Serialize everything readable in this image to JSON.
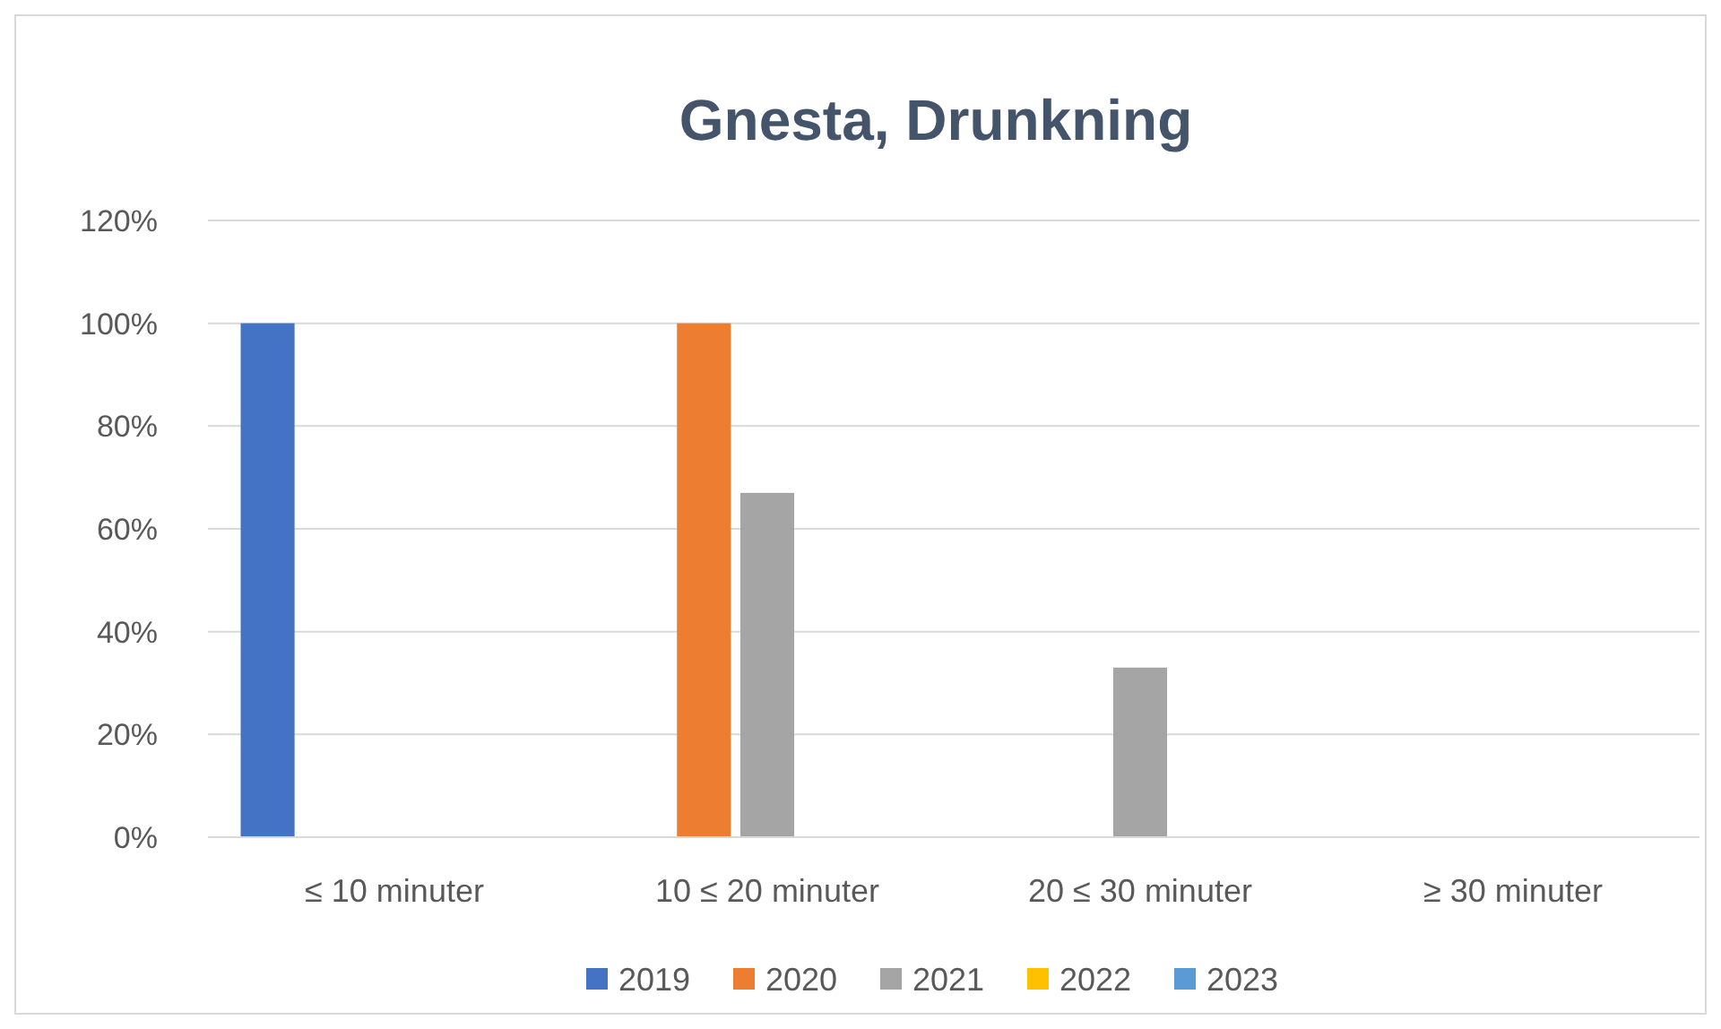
{
  "chart_data": {
    "type": "bar",
    "title": "Gnesta, Drunkning",
    "categories": [
      "≤ 10 minuter",
      "10 ≤ 20 minuter",
      "20 ≤ 30 minuter",
      "≥ 30 minuter"
    ],
    "series": [
      {
        "name": "2019",
        "color": "#4472c4",
        "values": [
          100,
          0,
          0,
          0
        ]
      },
      {
        "name": "2020",
        "color": "#ed7d31",
        "values": [
          0,
          100,
          0,
          0
        ]
      },
      {
        "name": "2021",
        "color": "#a5a5a5",
        "values": [
          0,
          67,
          33,
          0
        ]
      },
      {
        "name": "2022",
        "color": "#ffc000",
        "values": [
          0,
          0,
          0,
          0
        ]
      },
      {
        "name": "2023",
        "color": "#5b9bd5",
        "values": [
          0,
          0,
          0,
          0
        ]
      }
    ],
    "ylim": [
      0,
      120
    ],
    "yticks": [
      {
        "value": 0,
        "label": "0%"
      },
      {
        "value": 20,
        "label": "20%"
      },
      {
        "value": 40,
        "label": "40%"
      },
      {
        "value": 60,
        "label": "60%"
      },
      {
        "value": 80,
        "label": "80%"
      },
      {
        "value": 100,
        "label": "100%"
      },
      {
        "value": 120,
        "label": "120%"
      }
    ],
    "grid": "y",
    "legend": "bottom"
  }
}
